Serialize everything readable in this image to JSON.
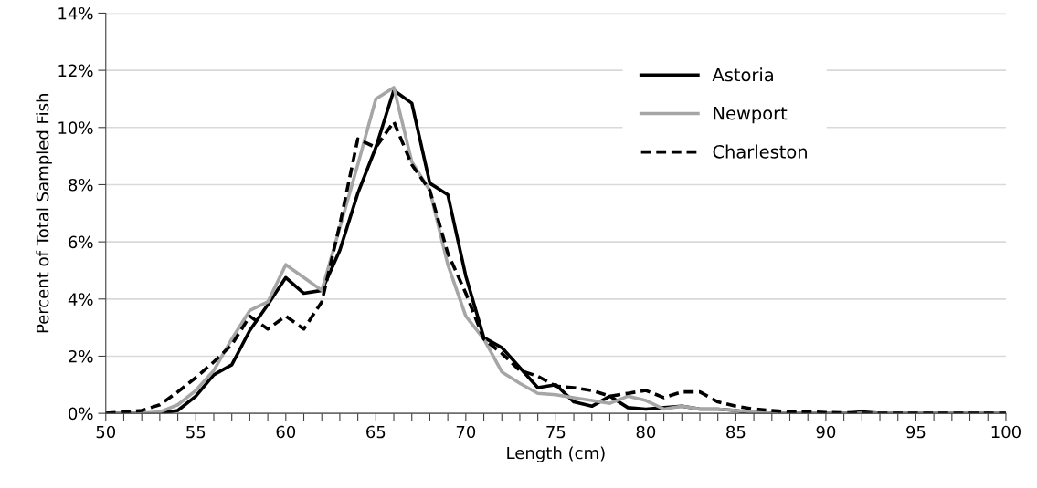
{
  "chart_data": {
    "type": "line",
    "xlabel": "Length (cm)",
    "ylabel": "Percent of Total Sampled Fish",
    "x": [
      50,
      51,
      52,
      53,
      54,
      55,
      56,
      57,
      58,
      59,
      60,
      61,
      62,
      63,
      64,
      65,
      66,
      67,
      68,
      69,
      70,
      71,
      72,
      73,
      74,
      75,
      76,
      77,
      78,
      79,
      80,
      81,
      82,
      83,
      84,
      85,
      86,
      87,
      88,
      89,
      90,
      91,
      92,
      93,
      94,
      95,
      96,
      97,
      98,
      99,
      100
    ],
    "series": [
      {
        "name": "Astoria",
        "color": "#000000",
        "line_style": "solid",
        "values": [
          0,
          0,
          0,
          0,
          0.1,
          0.6,
          1.35,
          1.7,
          2.9,
          3.8,
          4.75,
          4.2,
          4.3,
          5.7,
          7.7,
          9.3,
          11.3,
          10.85,
          8.05,
          7.65,
          4.8,
          2.65,
          2.3,
          1.6,
          0.9,
          1.0,
          0.4,
          0.25,
          0.6,
          0.2,
          0.15,
          0.2,
          0.25,
          0.15,
          0.15,
          0.1,
          0,
          0,
          0,
          0,
          0,
          0,
          0.05,
          0,
          0,
          0,
          0,
          0,
          0,
          0,
          0
        ]
      },
      {
        "name": "Newport",
        "color": "#a6a6a6",
        "line_style": "solid",
        "values": [
          0,
          0,
          0,
          0.05,
          0.3,
          0.8,
          1.5,
          2.6,
          3.6,
          3.9,
          5.2,
          4.75,
          4.3,
          6.5,
          8.7,
          11.0,
          11.4,
          8.8,
          7.8,
          5.2,
          3.4,
          2.6,
          1.45,
          1.05,
          0.7,
          0.65,
          0.55,
          0.45,
          0.35,
          0.6,
          0.45,
          0.15,
          0.25,
          0.15,
          0.15,
          0.1,
          0.05,
          0,
          0,
          0,
          0,
          0,
          0,
          0,
          0,
          0,
          0,
          0,
          0,
          0,
          0
        ]
      },
      {
        "name": "Charleston",
        "color": "#000000",
        "line_style": "dashed",
        "values": [
          0,
          0.05,
          0.1,
          0.3,
          0.75,
          1.25,
          1.8,
          2.4,
          3.4,
          2.95,
          3.4,
          2.95,
          3.9,
          6.6,
          9.6,
          9.3,
          10.2,
          8.7,
          7.8,
          5.6,
          4.2,
          2.6,
          2.1,
          1.5,
          1.3,
          0.95,
          0.9,
          0.8,
          0.6,
          0.7,
          0.8,
          0.55,
          0.75,
          0.75,
          0.4,
          0.25,
          0.15,
          0.1,
          0.05,
          0.05,
          0.03,
          0.02,
          0,
          0,
          0,
          0,
          0,
          0,
          0,
          0,
          0
        ]
      }
    ],
    "xlim": [
      50,
      100
    ],
    "xticks": [
      50,
      {
        "value": 51,
        "label": null
      },
      {
        "value": 52,
        "label": null
      },
      {
        "value": 53,
        "label": null
      },
      {
        "value": 54,
        "label": null
      },
      55,
      {
        "value": 56,
        "label": null
      },
      {
        "value": 57,
        "label": null
      },
      {
        "value": 58,
        "label": null
      },
      {
        "value": 59,
        "label": null
      },
      60,
      {
        "value": 61,
        "label": null
      },
      {
        "value": 62,
        "label": null
      },
      {
        "value": 63,
        "label": null
      },
      {
        "value": 64,
        "label": null
      },
      65,
      {
        "value": 66,
        "label": null
      },
      {
        "value": 67,
        "label": null
      },
      {
        "value": 68,
        "label": null
      },
      {
        "value": 69,
        "label": null
      },
      70,
      {
        "value": 71,
        "label": null
      },
      {
        "value": 72,
        "label": null
      },
      {
        "value": 73,
        "label": null
      },
      {
        "value": 74,
        "label": null
      },
      75,
      {
        "value": 76,
        "label": null
      },
      {
        "value": 77,
        "label": null
      },
      {
        "value": 78,
        "label": null
      },
      {
        "value": 79,
        "label": null
      },
      80,
      {
        "value": 81,
        "label": null
      },
      {
        "value": 82,
        "label": null
      },
      {
        "value": 83,
        "label": null
      },
      {
        "value": 84,
        "label": null
      },
      85,
      {
        "value": 86,
        "label": null
      },
      {
        "value": 87,
        "label": null
      },
      {
        "value": 88,
        "label": null
      },
      {
        "value": 89,
        "label": null
      },
      90,
      {
        "value": 91,
        "label": null
      },
      {
        "value": 92,
        "label": null
      },
      {
        "value": 93,
        "label": null
      },
      {
        "value": 94,
        "label": null
      },
      95,
      {
        "value": 96,
        "label": null
      },
      {
        "value": 97,
        "label": null
      },
      {
        "value": 98,
        "label": null
      },
      {
        "value": 99,
        "label": null
      },
      100
    ],
    "ylim": [
      0,
      14
    ],
    "yticks": [
      {
        "value": 0,
        "label": "0%"
      },
      {
        "value": 2,
        "label": "2%"
      },
      {
        "value": 4,
        "label": "4%"
      },
      {
        "value": 6,
        "label": "6%"
      },
      {
        "value": 8,
        "label": "8%"
      },
      {
        "value": 10,
        "label": "10%"
      },
      {
        "value": 12,
        "label": "12%"
      },
      {
        "value": 14,
        "label": "14%"
      }
    ],
    "grid": "y",
    "legend": "top right",
    "marker": "none"
  }
}
